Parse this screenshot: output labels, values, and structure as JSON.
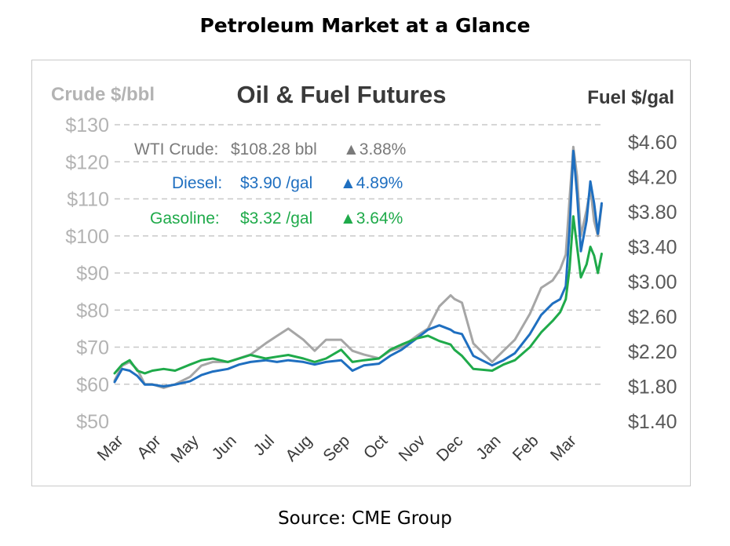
{
  "header": {
    "title": "Petroleum Market at a Glance"
  },
  "footer": {
    "source": "Source: CME Group"
  },
  "colors": {
    "crude": "#a6a6a6",
    "diesel": "#1f6fc0",
    "gasoline": "#1faa4a",
    "grid": "#c8c8c8",
    "left_axis_text": "#b3b3b3",
    "right_axis_text": "#595959"
  },
  "chart_data": {
    "type": "line",
    "title": "Oil & Fuel Futures",
    "y_left_label": "Crude $/bbl",
    "y_right_label": "Fuel $/gal",
    "y_left_ticks": [
      "$130",
      "$120",
      "$110",
      "$100",
      "$90",
      "$80",
      "$70",
      "$60",
      "$50"
    ],
    "y_right_ticks": [
      "$4.60",
      "$4.20",
      "$3.80",
      "$3.40",
      "$3.00",
      "$2.60",
      "$2.20",
      "$1.80",
      "$1.40"
    ],
    "y_left_range": [
      50,
      130
    ],
    "y_right_range": [
      1.4,
      4.8
    ],
    "x_ticks": [
      "Mar",
      "Apr",
      "May",
      "Jun",
      "Jul",
      "Aug",
      "Sep",
      "Oct",
      "Nov",
      "Dec",
      "Jan",
      "Feb",
      "Mar"
    ],
    "grid": "horizontal-dashed",
    "legend": [
      {
        "label": "WTI Crude:",
        "value": "$108.28 bbl",
        "change": "▲3.88%"
      },
      {
        "label": "Diesel:",
        "value": "$3.90 /gal",
        "change": "▲4.89%"
      },
      {
        "label": "Gasoline:",
        "value": "$3.32 /gal",
        "change": "▲3.64%"
      }
    ],
    "series": [
      {
        "name": "WTI Crude",
        "axis": "left",
        "x": [
          0,
          0.2,
          0.4,
          0.6,
          0.8,
          1.0,
          1.3,
          1.6,
          2.0,
          2.3,
          2.6,
          3.0,
          3.3,
          3.6,
          4.0,
          4.3,
          4.6,
          5.0,
          5.3,
          5.6,
          6.0,
          6.3,
          6.6,
          7.0,
          7.3,
          7.6,
          8.0,
          8.3,
          8.6,
          8.9,
          9.0,
          9.2,
          9.5,
          10.0,
          10.3,
          10.6,
          11.0,
          11.3,
          11.6,
          11.8,
          11.95,
          12.05,
          12.15,
          12.25,
          12.35,
          12.5,
          12.6,
          12.7,
          12.8,
          12.9
        ],
        "values": [
          61,
          65,
          66,
          64,
          60,
          60,
          59,
          60,
          62,
          65,
          66,
          66,
          67,
          68,
          71,
          73,
          75,
          72,
          69,
          72,
          72,
          69,
          68,
          67,
          69,
          70,
          73,
          75,
          81,
          84,
          83,
          82,
          71,
          66,
          69,
          72,
          79,
          86,
          88,
          91,
          95,
          110,
          124,
          116,
          100,
          107,
          113,
          104,
          100,
          108.28
        ]
      },
      {
        "name": "Diesel",
        "axis": "right",
        "x": [
          0,
          0.2,
          0.4,
          0.6,
          0.8,
          1.0,
          1.3,
          1.6,
          2.0,
          2.3,
          2.6,
          3.0,
          3.3,
          3.6,
          4.0,
          4.3,
          4.6,
          5.0,
          5.3,
          5.6,
          6.0,
          6.3,
          6.6,
          7.0,
          7.3,
          7.6,
          8.0,
          8.3,
          8.6,
          8.9,
          9.0,
          9.2,
          9.5,
          10.0,
          10.3,
          10.6,
          11.0,
          11.3,
          11.6,
          11.8,
          11.95,
          12.05,
          12.15,
          12.25,
          12.35,
          12.5,
          12.6,
          12.7,
          12.8,
          12.9
        ],
        "values": [
          1.85,
          2.0,
          1.98,
          1.92,
          1.82,
          1.82,
          1.8,
          1.82,
          1.86,
          1.93,
          1.97,
          2.0,
          2.05,
          2.08,
          2.1,
          2.08,
          2.1,
          2.08,
          2.05,
          2.08,
          2.1,
          1.98,
          2.04,
          2.06,
          2.15,
          2.22,
          2.35,
          2.45,
          2.5,
          2.45,
          2.42,
          2.4,
          2.15,
          2.04,
          2.1,
          2.18,
          2.4,
          2.62,
          2.75,
          2.8,
          2.95,
          3.6,
          4.5,
          4.0,
          3.35,
          3.7,
          4.15,
          3.9,
          3.55,
          3.9
        ]
      },
      {
        "name": "Gasoline",
        "axis": "right",
        "x": [
          0,
          0.2,
          0.4,
          0.6,
          0.8,
          1.0,
          1.3,
          1.6,
          2.0,
          2.3,
          2.6,
          3.0,
          3.3,
          3.6,
          4.0,
          4.3,
          4.6,
          5.0,
          5.3,
          5.6,
          6.0,
          6.3,
          6.6,
          7.0,
          7.3,
          7.6,
          8.0,
          8.3,
          8.6,
          8.9,
          9.0,
          9.2,
          9.5,
          10.0,
          10.3,
          10.6,
          11.0,
          11.3,
          11.6,
          11.8,
          11.95,
          12.05,
          12.15,
          12.25,
          12.35,
          12.5,
          12.6,
          12.7,
          12.8,
          12.9
        ],
        "values": [
          1.95,
          2.05,
          2.1,
          1.98,
          1.95,
          1.98,
          2.0,
          1.98,
          2.05,
          2.1,
          2.12,
          2.08,
          2.12,
          2.16,
          2.12,
          2.14,
          2.16,
          2.12,
          2.08,
          2.12,
          2.22,
          2.08,
          2.1,
          2.12,
          2.22,
          2.28,
          2.35,
          2.38,
          2.32,
          2.28,
          2.22,
          2.15,
          2.0,
          1.98,
          2.05,
          2.1,
          2.25,
          2.42,
          2.55,
          2.65,
          2.8,
          3.15,
          3.75,
          3.4,
          3.05,
          3.2,
          3.4,
          3.3,
          3.1,
          3.32
        ]
      }
    ]
  }
}
